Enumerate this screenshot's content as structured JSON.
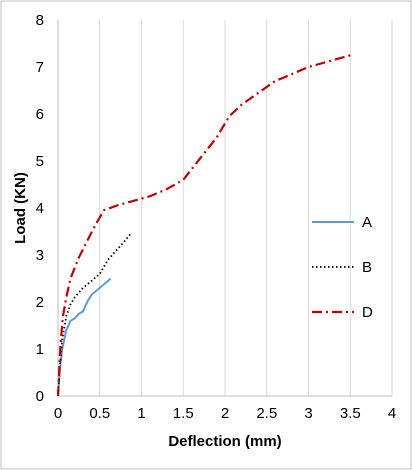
{
  "chart_data": {
    "type": "line",
    "title": "",
    "xlabel": "Deflection (mm)",
    "ylabel": "Load (KN)",
    "xlim": [
      0,
      4
    ],
    "ylim": [
      0,
      8
    ],
    "xticks": [
      0,
      0.5,
      1,
      1.5,
      2,
      2.5,
      3,
      3.5,
      4
    ],
    "xtick_labels": [
      "0",
      "0.5",
      "1",
      "1.5",
      "2",
      "2.5",
      "3",
      "3.5",
      "4"
    ],
    "yticks": [
      0,
      1,
      2,
      3,
      4,
      5,
      6,
      7,
      8
    ],
    "ytick_labels": [
      "0",
      "1",
      "2",
      "3",
      "4",
      "5",
      "6",
      "7",
      "8"
    ],
    "grid": "vertical",
    "legend_position": "right",
    "series": [
      {
        "name": "A",
        "color": "#5b9bd5",
        "style": "solid",
        "x": [
          0,
          0.02,
          0.05,
          0.1,
          0.15,
          0.2,
          0.25,
          0.3,
          0.35,
          0.4,
          0.5,
          0.6,
          0.63
        ],
        "y": [
          0,
          0.5,
          1.0,
          1.4,
          1.6,
          1.65,
          1.75,
          1.8,
          2.0,
          2.15,
          2.3,
          2.45,
          2.5
        ]
      },
      {
        "name": "B",
        "color": "#000000",
        "style": "dotted",
        "x": [
          0,
          0.02,
          0.05,
          0.1,
          0.15,
          0.2,
          0.3,
          0.4,
          0.5,
          0.6,
          0.7,
          0.8,
          0.87
        ],
        "y": [
          0,
          0.6,
          1.2,
          1.7,
          1.95,
          2.1,
          2.3,
          2.45,
          2.6,
          2.9,
          3.1,
          3.3,
          3.45
        ]
      },
      {
        "name": "D",
        "color": "#c00000",
        "style": "dashdot",
        "x": [
          0,
          0.03,
          0.06,
          0.1,
          0.15,
          0.25,
          0.35,
          0.45,
          0.55,
          0.7,
          0.9,
          1.1,
          1.3,
          1.5,
          1.7,
          1.9,
          2.05,
          2.2,
          2.4,
          2.6,
          2.8,
          3.0,
          3.2,
          3.5
        ],
        "y": [
          0,
          1.1,
          1.7,
          2.1,
          2.5,
          2.95,
          3.3,
          3.65,
          3.95,
          4.05,
          4.15,
          4.25,
          4.4,
          4.6,
          5.05,
          5.5,
          5.95,
          6.2,
          6.45,
          6.7,
          6.85,
          7.0,
          7.1,
          7.25
        ]
      }
    ]
  }
}
